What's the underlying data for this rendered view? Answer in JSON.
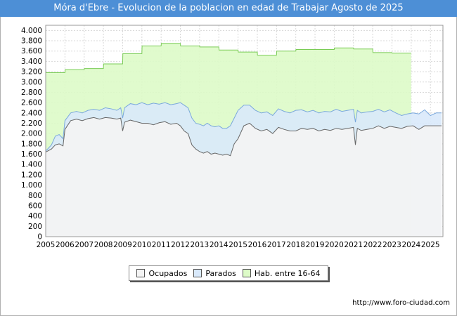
{
  "chart_data": {
    "type": "area",
    "title": "Móra d'Ebre - Evolucion de la poblacion en edad de Trabajar Agosto de 2025",
    "xlabel": "",
    "ylabel": "",
    "xlim": [
      2005,
      2025.65
    ],
    "ylim": [
      0,
      4100
    ],
    "y_ticks": [
      0,
      200,
      400,
      600,
      800,
      1000,
      1200,
      1400,
      1600,
      1800,
      2000,
      2200,
      2400,
      2600,
      2800,
      3000,
      3200,
      3400,
      3600,
      3800,
      4000
    ],
    "y_tick_labels": [
      "0",
      "200",
      "400",
      "600",
      "800",
      "1.000",
      "1.200",
      "1.400",
      "1.600",
      "1.800",
      "2.000",
      "2.200",
      "2.400",
      "2.600",
      "2.800",
      "3.000",
      "3.200",
      "3.400",
      "3.600",
      "3.800",
      "4.000"
    ],
    "x_ticks": [
      "2005",
      "2006",
      "2007",
      "2008",
      "2009",
      "2010",
      "2011",
      "2012",
      "2013",
      "2014",
      "2015",
      "2016",
      "2017",
      "2018",
      "2019",
      "2020",
      "2021",
      "2022",
      "2023",
      "2024",
      "2025"
    ],
    "grid": true,
    "legend_position": "bottom-center",
    "series": [
      {
        "name": "Ocupados",
        "color": "#f4f4f4",
        "stroke": "#666666",
        "x": [
          2005.0,
          2005.3,
          2005.5,
          2005.7,
          2005.9,
          2006.0,
          2006.3,
          2006.6,
          2006.9,
          2007.2,
          2007.5,
          2007.8,
          2008.1,
          2008.4,
          2008.7,
          2008.9,
          2009.0,
          2009.1,
          2009.4,
          2009.7,
          2010.0,
          2010.3,
          2010.6,
          2010.9,
          2011.2,
          2011.5,
          2011.8,
          2012.0,
          2012.2,
          2012.4,
          2012.6,
          2012.8,
          2013.0,
          2013.2,
          2013.4,
          2013.6,
          2013.8,
          2014.0,
          2014.2,
          2014.4,
          2014.6,
          2014.8,
          2015.0,
          2015.3,
          2015.6,
          2015.9,
          2016.2,
          2016.5,
          2016.8,
          2017.1,
          2017.4,
          2017.7,
          2018.0,
          2018.3,
          2018.6,
          2018.9,
          2019.2,
          2019.5,
          2019.8,
          2020.1,
          2020.4,
          2020.7,
          2021.0,
          2021.1,
          2021.2,
          2021.4,
          2021.7,
          2022.0,
          2022.3,
          2022.6,
          2022.9,
          2023.2,
          2023.5,
          2023.8,
          2024.1,
          2024.4,
          2024.7,
          2025.0,
          2025.3,
          2025.58
        ],
        "values": [
          1640,
          1700,
          1780,
          1800,
          1760,
          2080,
          2250,
          2280,
          2250,
          2290,
          2310,
          2280,
          2310,
          2300,
          2280,
          2300,
          2050,
          2220,
          2260,
          2230,
          2200,
          2200,
          2170,
          2210,
          2230,
          2180,
          2200,
          2150,
          2050,
          2000,
          1780,
          1700,
          1650,
          1620,
          1650,
          1600,
          1620,
          1600,
          1580,
          1600,
          1570,
          1800,
          1900,
          2150,
          2200,
          2100,
          2050,
          2080,
          2000,
          2120,
          2080,
          2050,
          2050,
          2100,
          2080,
          2100,
          2050,
          2080,
          2060,
          2100,
          2080,
          2100,
          2120,
          1780,
          2100,
          2060,
          2080,
          2100,
          2150,
          2100,
          2140,
          2120,
          2100,
          2140,
          2150,
          2080,
          2150,
          2150,
          2150,
          2150
        ]
      },
      {
        "name": "Parados",
        "color": "#d9e9fb",
        "stroke": "#7aa8dc",
        "x": [
          2005.0,
          2005.3,
          2005.5,
          2005.7,
          2005.9,
          2006.0,
          2006.3,
          2006.6,
          2006.9,
          2007.2,
          2007.5,
          2007.8,
          2008.1,
          2008.4,
          2008.7,
          2008.9,
          2009.0,
          2009.1,
          2009.4,
          2009.7,
          2010.0,
          2010.3,
          2010.6,
          2010.9,
          2011.2,
          2011.5,
          2011.8,
          2012.0,
          2012.2,
          2012.4,
          2012.6,
          2012.8,
          2013.0,
          2013.2,
          2013.4,
          2013.6,
          2013.8,
          2014.0,
          2014.2,
          2014.4,
          2014.6,
          2014.8,
          2015.0,
          2015.3,
          2015.6,
          2015.9,
          2016.2,
          2016.5,
          2016.8,
          2017.1,
          2017.4,
          2017.7,
          2018.0,
          2018.3,
          2018.6,
          2018.9,
          2019.2,
          2019.5,
          2019.8,
          2020.1,
          2020.4,
          2020.7,
          2021.0,
          2021.1,
          2021.2,
          2021.4,
          2021.7,
          2022.0,
          2022.3,
          2022.6,
          2022.9,
          2023.2,
          2023.5,
          2023.8,
          2024.1,
          2024.4,
          2024.7,
          2025.0,
          2025.3,
          2025.58
        ],
        "values": [
          1660,
          1780,
          1950,
          1980,
          1900,
          2250,
          2400,
          2430,
          2400,
          2450,
          2470,
          2450,
          2500,
          2480,
          2450,
          2500,
          2300,
          2500,
          2580,
          2560,
          2600,
          2560,
          2590,
          2570,
          2600,
          2560,
          2580,
          2600,
          2550,
          2500,
          2300,
          2200,
          2180,
          2150,
          2200,
          2150,
          2130,
          2150,
          2100,
          2100,
          2150,
          2300,
          2450,
          2550,
          2550,
          2450,
          2400,
          2420,
          2350,
          2480,
          2430,
          2400,
          2450,
          2460,
          2420,
          2450,
          2400,
          2430,
          2420,
          2470,
          2430,
          2450,
          2470,
          2220,
          2450,
          2400,
          2420,
          2430,
          2470,
          2420,
          2460,
          2400,
          2350,
          2380,
          2400,
          2380,
          2460,
          2350,
          2400,
          2400
        ]
      },
      {
        "name": "Hab. entre 16-64",
        "color": "#ddfbc8",
        "stroke": "#7acc55",
        "x": [
          2005.0,
          2006.0,
          2006.01,
          2007.0,
          2007.01,
          2008.0,
          2008.01,
          2009.0,
          2009.01,
          2010.0,
          2010.01,
          2011.0,
          2011.01,
          2012.0,
          2012.01,
          2013.0,
          2013.01,
          2014.0,
          2014.01,
          2015.0,
          2015.01,
          2016.0,
          2016.01,
          2017.0,
          2017.01,
          2018.0,
          2018.01,
          2019.0,
          2019.01,
          2020.0,
          2020.01,
          2021.0,
          2021.01,
          2022.0,
          2022.01,
          2023.0,
          2023.01,
          2024.0
        ],
        "values": [
          3180,
          3180,
          3240,
          3240,
          3260,
          3260,
          3350,
          3350,
          3550,
          3550,
          3700,
          3700,
          3750,
          3750,
          3700,
          3700,
          3680,
          3680,
          3620,
          3620,
          3580,
          3580,
          3520,
          3520,
          3600,
          3600,
          3630,
          3630,
          3630,
          3630,
          3660,
          3660,
          3640,
          3640,
          3570,
          3570,
          3560,
          3560
        ]
      }
    ]
  },
  "legend": {
    "items": [
      {
        "label": "Ocupados",
        "color": "#f4f4f4"
      },
      {
        "label": "Parados",
        "color": "#d9e9fb"
      },
      {
        "label": "Hab. entre 16-64",
        "color": "#ddfbc8"
      }
    ]
  },
  "footer": {
    "url": "http://www.foro-ciudad.com"
  }
}
